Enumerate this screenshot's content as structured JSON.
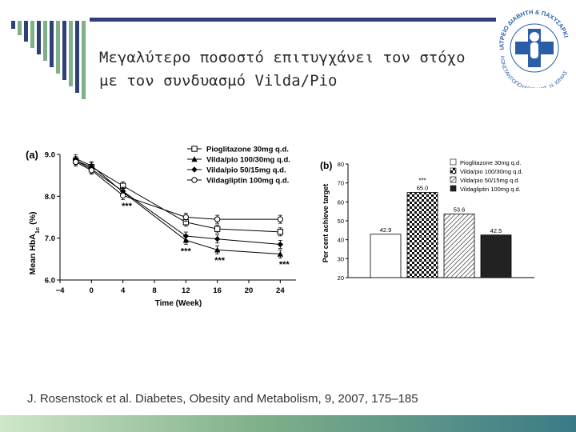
{
  "slide": {
    "title_line1": "Μεγαλύτερο ποσοστό επιτυγχάνει τον στόχο",
    "title_line2": "με τον συνδυασμό Vilda/Pio",
    "citation": "J. Rosenstock et al. Diabetes, Obesity and Metabolism, 9, 2007, 175–185",
    "logo_text": "ΙΑΤΡΕΙΟ ΔΙΑΒΗΤΗ & ΠΑΧΥΣΑΡΚΙΑΣ",
    "logo_text2": "ΚΩΝΣΤΑΝΤΟΠΟΥΛΕΙΟ ΝΟΣ. Ν. ΙΩΝΙΑΣ"
  },
  "colors": {
    "topline": "#2f3f77",
    "stripe_green": "#7fb08a",
    "stripe_blue": "#2f3f77",
    "bars_dark": "#222222"
  },
  "chart_data": [
    {
      "type": "line",
      "panel_label": "(a)",
      "xlabel": "Time (Week)",
      "ylabel": "Mean HbA1c (%)",
      "ylabel_main": "Mean HbA",
      "ylabel_sub": "1c",
      "ylabel_tail": " (%)",
      "xlim": [
        -4,
        26
      ],
      "ylim": [
        6.0,
        9.0
      ],
      "xticks": [
        -4,
        0,
        4,
        8,
        12,
        16,
        20,
        24
      ],
      "xtick_labels": [
        "−4",
        "0",
        "4",
        "8",
        "12",
        "16",
        "20",
        "24"
      ],
      "yticks": [
        6.0,
        7.0,
        8.0,
        9.0
      ],
      "ytick_labels": [
        "6.0",
        "7.0",
        "8.0",
        "9.0"
      ],
      "legend_position": "top-right",
      "series": [
        {
          "name": "Pioglitazone 30mg q.d.",
          "marker": "square-open",
          "x": [
            -2,
            0,
            4,
            12,
            16,
            24
          ],
          "y": [
            8.85,
            8.7,
            8.25,
            7.38,
            7.22,
            7.15
          ]
        },
        {
          "name": "Vilda/pio 100/30mg q.d.",
          "marker": "triangle-filled",
          "x": [
            -2,
            0,
            4,
            12,
            16,
            24
          ],
          "y": [
            8.9,
            8.73,
            8.1,
            6.95,
            6.72,
            6.62
          ]
        },
        {
          "name": "Vilda/pio 50/15mg q.d.",
          "marker": "diamond-filled",
          "x": [
            -2,
            0,
            4,
            12,
            16,
            24
          ],
          "y": [
            8.85,
            8.65,
            8.12,
            7.05,
            6.98,
            6.85
          ]
        },
        {
          "name": "Vildagliptin 100mg q.d.",
          "marker": "circle-open",
          "x": [
            -2,
            0,
            4,
            12,
            16,
            24
          ],
          "y": [
            8.82,
            8.62,
            8.02,
            7.5,
            7.45,
            7.45
          ]
        }
      ],
      "annotations": [
        {
          "text": "***",
          "x": 4.5,
          "y": 7.78
        },
        {
          "text": "***",
          "x": 12,
          "y": 6.7
        },
        {
          "text": "***",
          "x": 16.3,
          "y": 6.48
        },
        {
          "text": "***",
          "x": 24.5,
          "y": 6.38
        }
      ]
    },
    {
      "type": "bar",
      "panel_label": "(b)",
      "ylabel": "Per cent achieve target",
      "ylim": [
        20,
        80
      ],
      "yticks": [
        20,
        30,
        40,
        50,
        60,
        70,
        80
      ],
      "ytick_labels": [
        "20",
        "30",
        "40",
        "50",
        "60",
        "70",
        "80"
      ],
      "legend_position": "top-right",
      "categories": [
        "Pioglitazone 30mg q.d.",
        "Vilda/pio 100/30mg q.d.",
        "Vilda/pio 50/15mg q.d.",
        "Vildagliptin 100mg q.d."
      ],
      "values": [
        42.9,
        65.0,
        53.6,
        42.5
      ],
      "value_labels": [
        "42.9",
        "65.0",
        "53.6",
        "42.5"
      ],
      "fills": [
        "white",
        "checker",
        "hatch",
        "black"
      ],
      "annotations": [
        {
          "text": "***",
          "bar": 1
        }
      ]
    }
  ]
}
